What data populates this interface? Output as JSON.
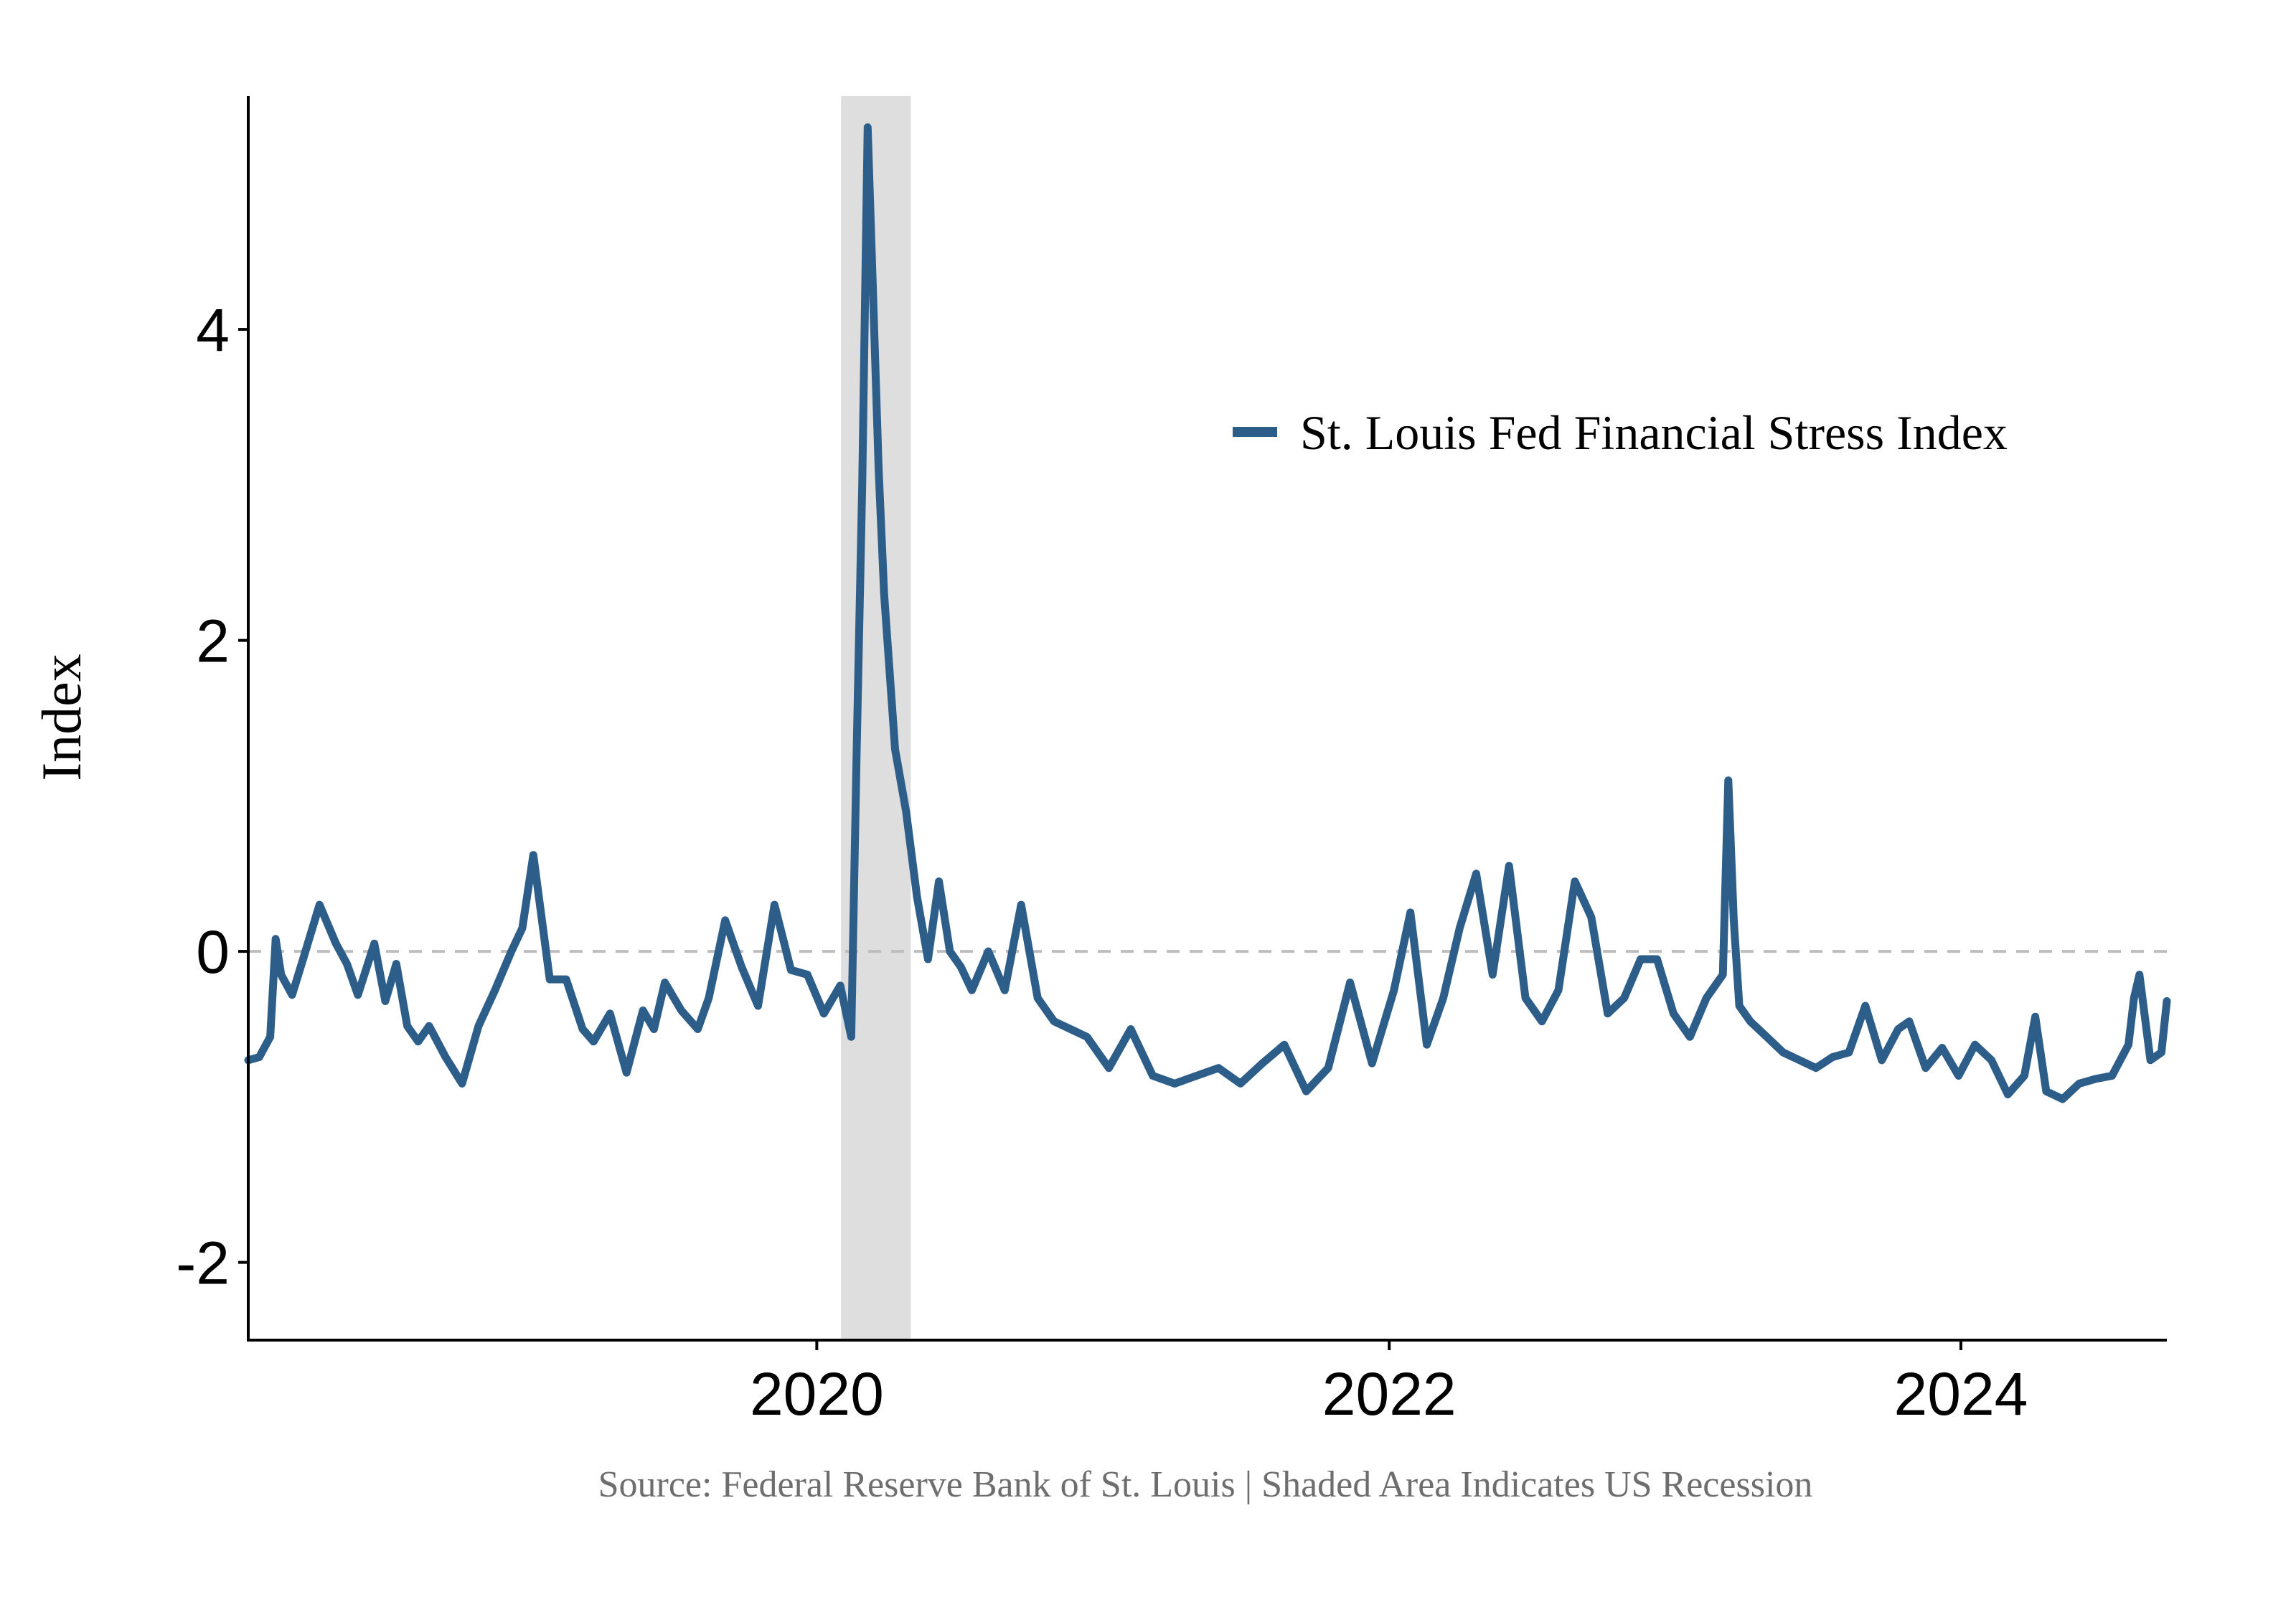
{
  "chart_data": {
    "type": "line",
    "ylabel": "Index",
    "ylim": [
      -2.5,
      5.5
    ],
    "yticks": [
      {
        "value": 4,
        "label": "4"
      },
      {
        "value": 2,
        "label": "2"
      },
      {
        "value": 0,
        "label": "0"
      },
      {
        "value": -2,
        "label": "-2"
      }
    ],
    "xlim": [
      "2018-01-05",
      "2024-09-20"
    ],
    "xticks": [
      {
        "value": "2020-01-01",
        "label": "2020"
      },
      {
        "value": "2022-01-01",
        "label": "2022"
      },
      {
        "value": "2024-01-01",
        "label": "2024"
      }
    ],
    "reference_line": {
      "y": 0,
      "style": "dashed",
      "color": "#bdbdbd"
    },
    "recession": {
      "start": "2020-02-01",
      "end": "2020-04-30",
      "color": "#dedede"
    },
    "legend_position": "top-right",
    "series": [
      {
        "name": "St. Louis Fed Financial Stress Index",
        "color": "#2d5e8a",
        "x": [
          "2018-01-05",
          "2018-01-19",
          "2018-02-02",
          "2018-02-09",
          "2018-02-16",
          "2018-03-02",
          "2018-03-16",
          "2018-04-06",
          "2018-04-27",
          "2018-05-11",
          "2018-05-25",
          "2018-06-15",
          "2018-06-29",
          "2018-07-13",
          "2018-07-27",
          "2018-08-10",
          "2018-08-24",
          "2018-09-14",
          "2018-10-05",
          "2018-10-26",
          "2018-11-16",
          "2018-12-07",
          "2018-12-21",
          "2019-01-04",
          "2019-01-25",
          "2019-02-15",
          "2019-03-08",
          "2019-03-22",
          "2019-04-12",
          "2019-05-03",
          "2019-05-24",
          "2019-06-07",
          "2019-06-21",
          "2019-07-12",
          "2019-08-02",
          "2019-08-16",
          "2019-09-06",
          "2019-09-27",
          "2019-10-18",
          "2019-11-08",
          "2019-11-29",
          "2019-12-20",
          "2020-01-10",
          "2020-01-31",
          "2020-02-14",
          "2020-02-21",
          "2020-02-28",
          "2020-03-06",
          "2020-03-13",
          "2020-03-20",
          "2020-03-27",
          "2020-04-10",
          "2020-04-24",
          "2020-05-08",
          "2020-05-22",
          "2020-06-05",
          "2020-06-19",
          "2020-07-03",
          "2020-07-17",
          "2020-08-07",
          "2020-08-28",
          "2020-09-18",
          "2020-10-09",
          "2020-10-30",
          "2020-11-20",
          "2020-12-11",
          "2021-01-08",
          "2021-02-05",
          "2021-03-05",
          "2021-04-02",
          "2021-04-30",
          "2021-05-28",
          "2021-06-25",
          "2021-07-23",
          "2021-08-20",
          "2021-09-17",
          "2021-10-15",
          "2021-11-12",
          "2021-12-10",
          "2022-01-07",
          "2022-01-28",
          "2022-02-18",
          "2022-03-11",
          "2022-04-01",
          "2022-04-22",
          "2022-05-13",
          "2022-06-03",
          "2022-06-24",
          "2022-07-15",
          "2022-08-05",
          "2022-08-26",
          "2022-09-16",
          "2022-10-07",
          "2022-10-28",
          "2022-11-18",
          "2022-12-09",
          "2022-12-30",
          "2023-01-20",
          "2023-02-10",
          "2023-03-03",
          "2023-03-10",
          "2023-03-17",
          "2023-03-24",
          "2023-04-07",
          "2023-04-28",
          "2023-05-19",
          "2023-06-09",
          "2023-06-30",
          "2023-07-21",
          "2023-08-11",
          "2023-09-01",
          "2023-09-22",
          "2023-10-13",
          "2023-10-27",
          "2023-11-17",
          "2023-12-08",
          "2023-12-29",
          "2024-01-19",
          "2024-02-09",
          "2024-03-01",
          "2024-03-22",
          "2024-04-05",
          "2024-04-19",
          "2024-05-10",
          "2024-05-31",
          "2024-06-21",
          "2024-07-12",
          "2024-08-02",
          "2024-08-09",
          "2024-08-16",
          "2024-08-30",
          "2024-09-13",
          "2024-09-20"
        ],
        "values": [
          -0.7,
          -0.68,
          -0.55,
          0.08,
          -0.15,
          -0.28,
          -0.05,
          0.3,
          0.05,
          -0.08,
          -0.28,
          0.05,
          -0.32,
          -0.08,
          -0.48,
          -0.58,
          -0.48,
          -0.68,
          -0.85,
          -0.48,
          -0.25,
          0.0,
          0.15,
          0.62,
          -0.18,
          -0.18,
          -0.5,
          -0.58,
          -0.4,
          -0.78,
          -0.38,
          -0.5,
          -0.2,
          -0.38,
          -0.5,
          -0.3,
          0.2,
          -0.1,
          -0.35,
          0.3,
          -0.12,
          -0.15,
          -0.4,
          -0.22,
          -0.55,
          1.3,
          3.0,
          5.3,
          4.2,
          3.1,
          2.3,
          1.3,
          0.9,
          0.35,
          -0.05,
          0.45,
          0.0,
          -0.1,
          -0.25,
          0.0,
          -0.25,
          0.3,
          -0.3,
          -0.45,
          -0.5,
          -0.55,
          -0.75,
          -0.5,
          -0.8,
          -0.85,
          -0.8,
          -0.75,
          -0.85,
          -0.72,
          -0.6,
          -0.9,
          -0.75,
          -0.2,
          -0.72,
          -0.25,
          0.25,
          -0.6,
          -0.3,
          0.15,
          0.5,
          -0.15,
          0.55,
          -0.3,
          -0.45,
          -0.25,
          0.45,
          0.22,
          -0.4,
          -0.3,
          -0.05,
          -0.05,
          -0.4,
          -0.55,
          -0.3,
          -0.15,
          1.1,
          0.2,
          -0.35,
          -0.45,
          -0.55,
          -0.65,
          -0.7,
          -0.75,
          -0.68,
          -0.65,
          -0.35,
          -0.7,
          -0.5,
          -0.45,
          -0.75,
          -0.62,
          -0.8,
          -0.6,
          -0.7,
          -0.92,
          -0.8,
          -0.42,
          -0.9,
          -0.95,
          -0.85,
          -0.82,
          -0.8,
          -0.6,
          -0.3,
          -0.15,
          -0.7,
          -0.65,
          -0.32
        ]
      }
    ]
  },
  "caption": "Source: Federal Reserve Bank of St. Louis  | Shaded Area Indicates US Recession"
}
